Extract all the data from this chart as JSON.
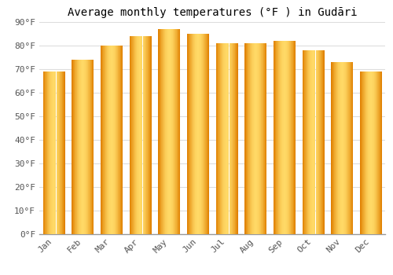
{
  "title": "Average monthly temperatures (°F ) in Gudāri",
  "months": [
    "Jan",
    "Feb",
    "Mar",
    "Apr",
    "May",
    "Jun",
    "Jul",
    "Aug",
    "Sep",
    "Oct",
    "Nov",
    "Dec"
  ],
  "values": [
    69,
    74,
    80,
    84,
    87,
    85,
    81,
    81,
    82,
    78,
    73,
    69
  ],
  "bar_color_light": "#FFD966",
  "bar_color_mid": "#FFA500",
  "bar_color_dark": "#E08000",
  "ylim": [
    0,
    90
  ],
  "yticks": [
    0,
    10,
    20,
    30,
    40,
    50,
    60,
    70,
    80,
    90
  ],
  "ytick_labels": [
    "0°F",
    "10°F",
    "20°F",
    "30°F",
    "40°F",
    "50°F",
    "60°F",
    "70°F",
    "80°F",
    "90°F"
  ],
  "background_color": "#FFFFFF",
  "grid_color": "#DDDDDD",
  "title_fontsize": 10,
  "tick_fontsize": 8,
  "bar_width": 0.75,
  "n_gradient_cols": 40
}
